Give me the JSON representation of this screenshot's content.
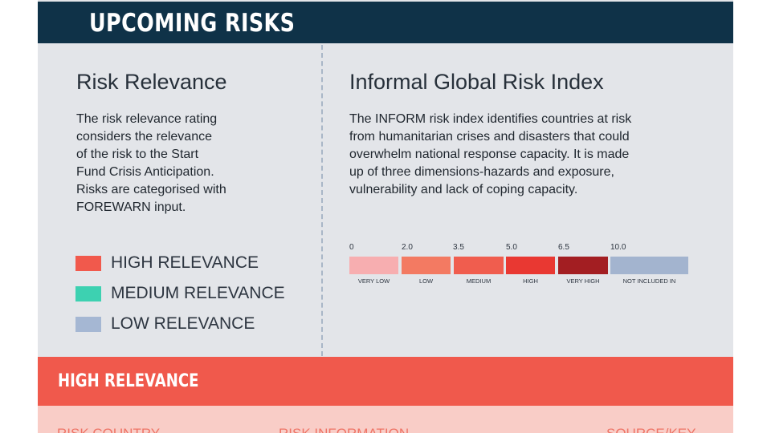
{
  "banner": {
    "title": "UPCOMING RISKS"
  },
  "relevance": {
    "title": "Risk Relevance",
    "lines": [
      "The risk relevance rating",
      "considers the relevance",
      "of the risk to the Start",
      "Fund Crisis Anticipation.",
      "Risks are categorised with",
      "FOREWARN input."
    ],
    "legend": [
      {
        "label": "HIGH RELEVANCE",
        "color": "#f1594c"
      },
      {
        "label": "MEDIUM RELEVANCE",
        "color": "#3dd1b1"
      },
      {
        "label": "LOW RELEVANCE",
        "color": "#a5b7d3"
      }
    ]
  },
  "inform": {
    "title": "Informal Global Risk Index",
    "lines": [
      "The INFORM risk index identifies countries at risk",
      "from humanitarian crises and disasters that could",
      "overwhelm national response capacity. It is made",
      "up of three dimensions-hazards and exposure,",
      "vulnerability and lack of coping capacity."
    ],
    "scale": {
      "ticks": [
        "0",
        "2.0",
        "3.5",
        "5.0",
        "6.5",
        "10.0"
      ],
      "bands": [
        {
          "label": "VERY LOW",
          "color": "#f7aeb0"
        },
        {
          "label": "LOW",
          "color": "#f37a62"
        },
        {
          "label": "MEDIUM",
          "color": "#f05d4e"
        },
        {
          "label": "HIGH",
          "color": "#e93832"
        },
        {
          "label": "VERY HIGH",
          "color": "#a31e22"
        },
        {
          "label": "NOT INCLUDED IN",
          "color": "#a3b4cf"
        }
      ]
    }
  },
  "high_section": {
    "label": "HIGH RELEVANCE"
  },
  "table": {
    "columns": [
      "RISK COUNTRY",
      "RISK INFORMATION",
      "SOURCE/KEY"
    ]
  }
}
